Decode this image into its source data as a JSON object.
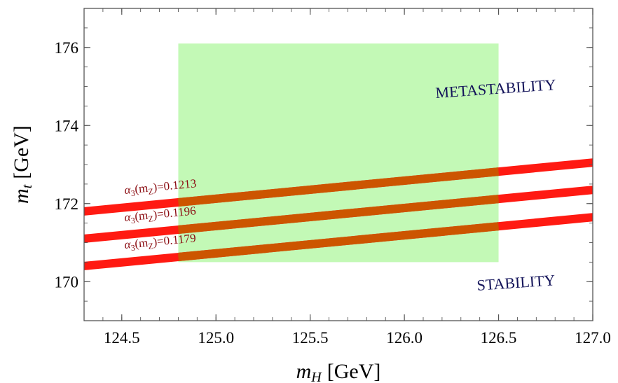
{
  "chart_data": {
    "type": "line",
    "xlabel_main": "m",
    "xlabel_sub": "H",
    "xlabel_unit": "[GeV]",
    "ylabel_main": "m",
    "ylabel_sub": "t",
    "ylabel_unit": "[GeV]",
    "xlim": [
      124.3,
      127.0
    ],
    "ylim": [
      169.0,
      177.0
    ],
    "xticks": [
      124.5,
      125.0,
      125.5,
      126.0,
      126.5,
      127.0
    ],
    "xtick_labels": [
      "124.5",
      "125.0",
      "125.5",
      "126.0",
      "126.5",
      "127.0"
    ],
    "yticks": [
      170,
      172,
      174,
      176
    ],
    "ytick_labels": [
      "170",
      "172",
      "174",
      "176"
    ],
    "highlight_region": {
      "x": [
        124.8,
        126.5
      ],
      "y": [
        170.5,
        176.1
      ],
      "color": "#c3f9b6"
    },
    "series": [
      {
        "label_prefix": "α",
        "label_sub": "3",
        "label_mid": "(m",
        "label_sub2": "Z",
        "label_value": ")=0.1213",
        "x": [
          124.3,
          127.0
        ],
        "y": [
          171.8,
          173.05
        ]
      },
      {
        "label_prefix": "α",
        "label_sub": "3",
        "label_mid": "(m",
        "label_sub2": "Z",
        "label_value": ")=0.1196",
        "x": [
          124.3,
          127.0
        ],
        "y": [
          171.1,
          172.35
        ]
      },
      {
        "label_prefix": "α",
        "label_sub": "3",
        "label_mid": "(m",
        "label_sub2": "Z",
        "label_value": ")=0.1179",
        "x": [
          124.3,
          127.0
        ],
        "y": [
          170.4,
          171.65
        ]
      }
    ],
    "band_color": "#ff1a12",
    "band_overlap_color": "#cc5500",
    "region_labels": {
      "upper": "METASTABILITY",
      "lower": "STABILITY"
    },
    "grid": false
  }
}
